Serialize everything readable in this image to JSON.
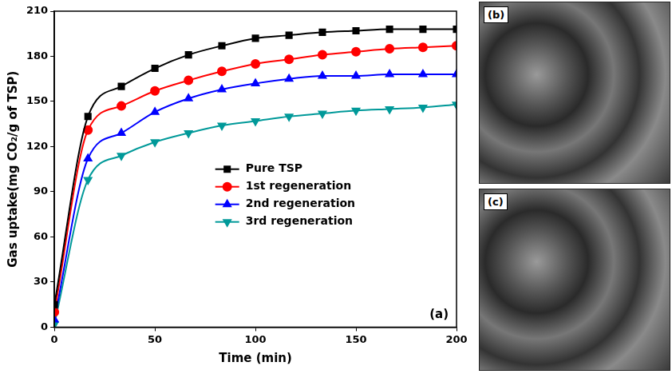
{
  "chart_data": {
    "type": "line",
    "annotation": "(a)",
    "x_label": "Time (min)",
    "y_label": "Gas uptake(mg CO₂/g of TSP)",
    "x": [
      0,
      16.7,
      33.3,
      50,
      66.7,
      83.3,
      100,
      116.7,
      133.3,
      150,
      166.7,
      183.3,
      200
    ],
    "series": [
      {
        "name": "Pure TSP",
        "color": "#000000",
        "marker": "square",
        "values": [
          15,
          140,
          160,
          172,
          181,
          187,
          192,
          194,
          196,
          197,
          198,
          198,
          198
        ]
      },
      {
        "name": "1st regeneration",
        "color": "#ff0000",
        "marker": "circle",
        "values": [
          10,
          131,
          147,
          157,
          164,
          170,
          175,
          178,
          181,
          183,
          185,
          186,
          187
        ]
      },
      {
        "name": "2nd regeneration",
        "color": "#0000ff",
        "marker": "triangle_up",
        "values": [
          5,
          112,
          129,
          143,
          152,
          158,
          162,
          165,
          167,
          167,
          168,
          168,
          168
        ]
      },
      {
        "name": "3rd regeneration",
        "color": "#009999",
        "marker": "triangle_down",
        "values": [
          2,
          98,
          114,
          123,
          129,
          134,
          137,
          140,
          142,
          144,
          145,
          146,
          148
        ]
      }
    ],
    "xlim": [
      0,
      200
    ],
    "xticks": [
      0,
      50,
      100,
      150,
      200
    ],
    "ylim": [
      0,
      210
    ],
    "yticks": [
      0,
      30,
      60,
      90,
      120,
      150,
      180,
      210
    ],
    "grid": false,
    "legend": "lower center"
  },
  "images": [
    {
      "label": "(b)"
    },
    {
      "label": "(c)"
    }
  ]
}
